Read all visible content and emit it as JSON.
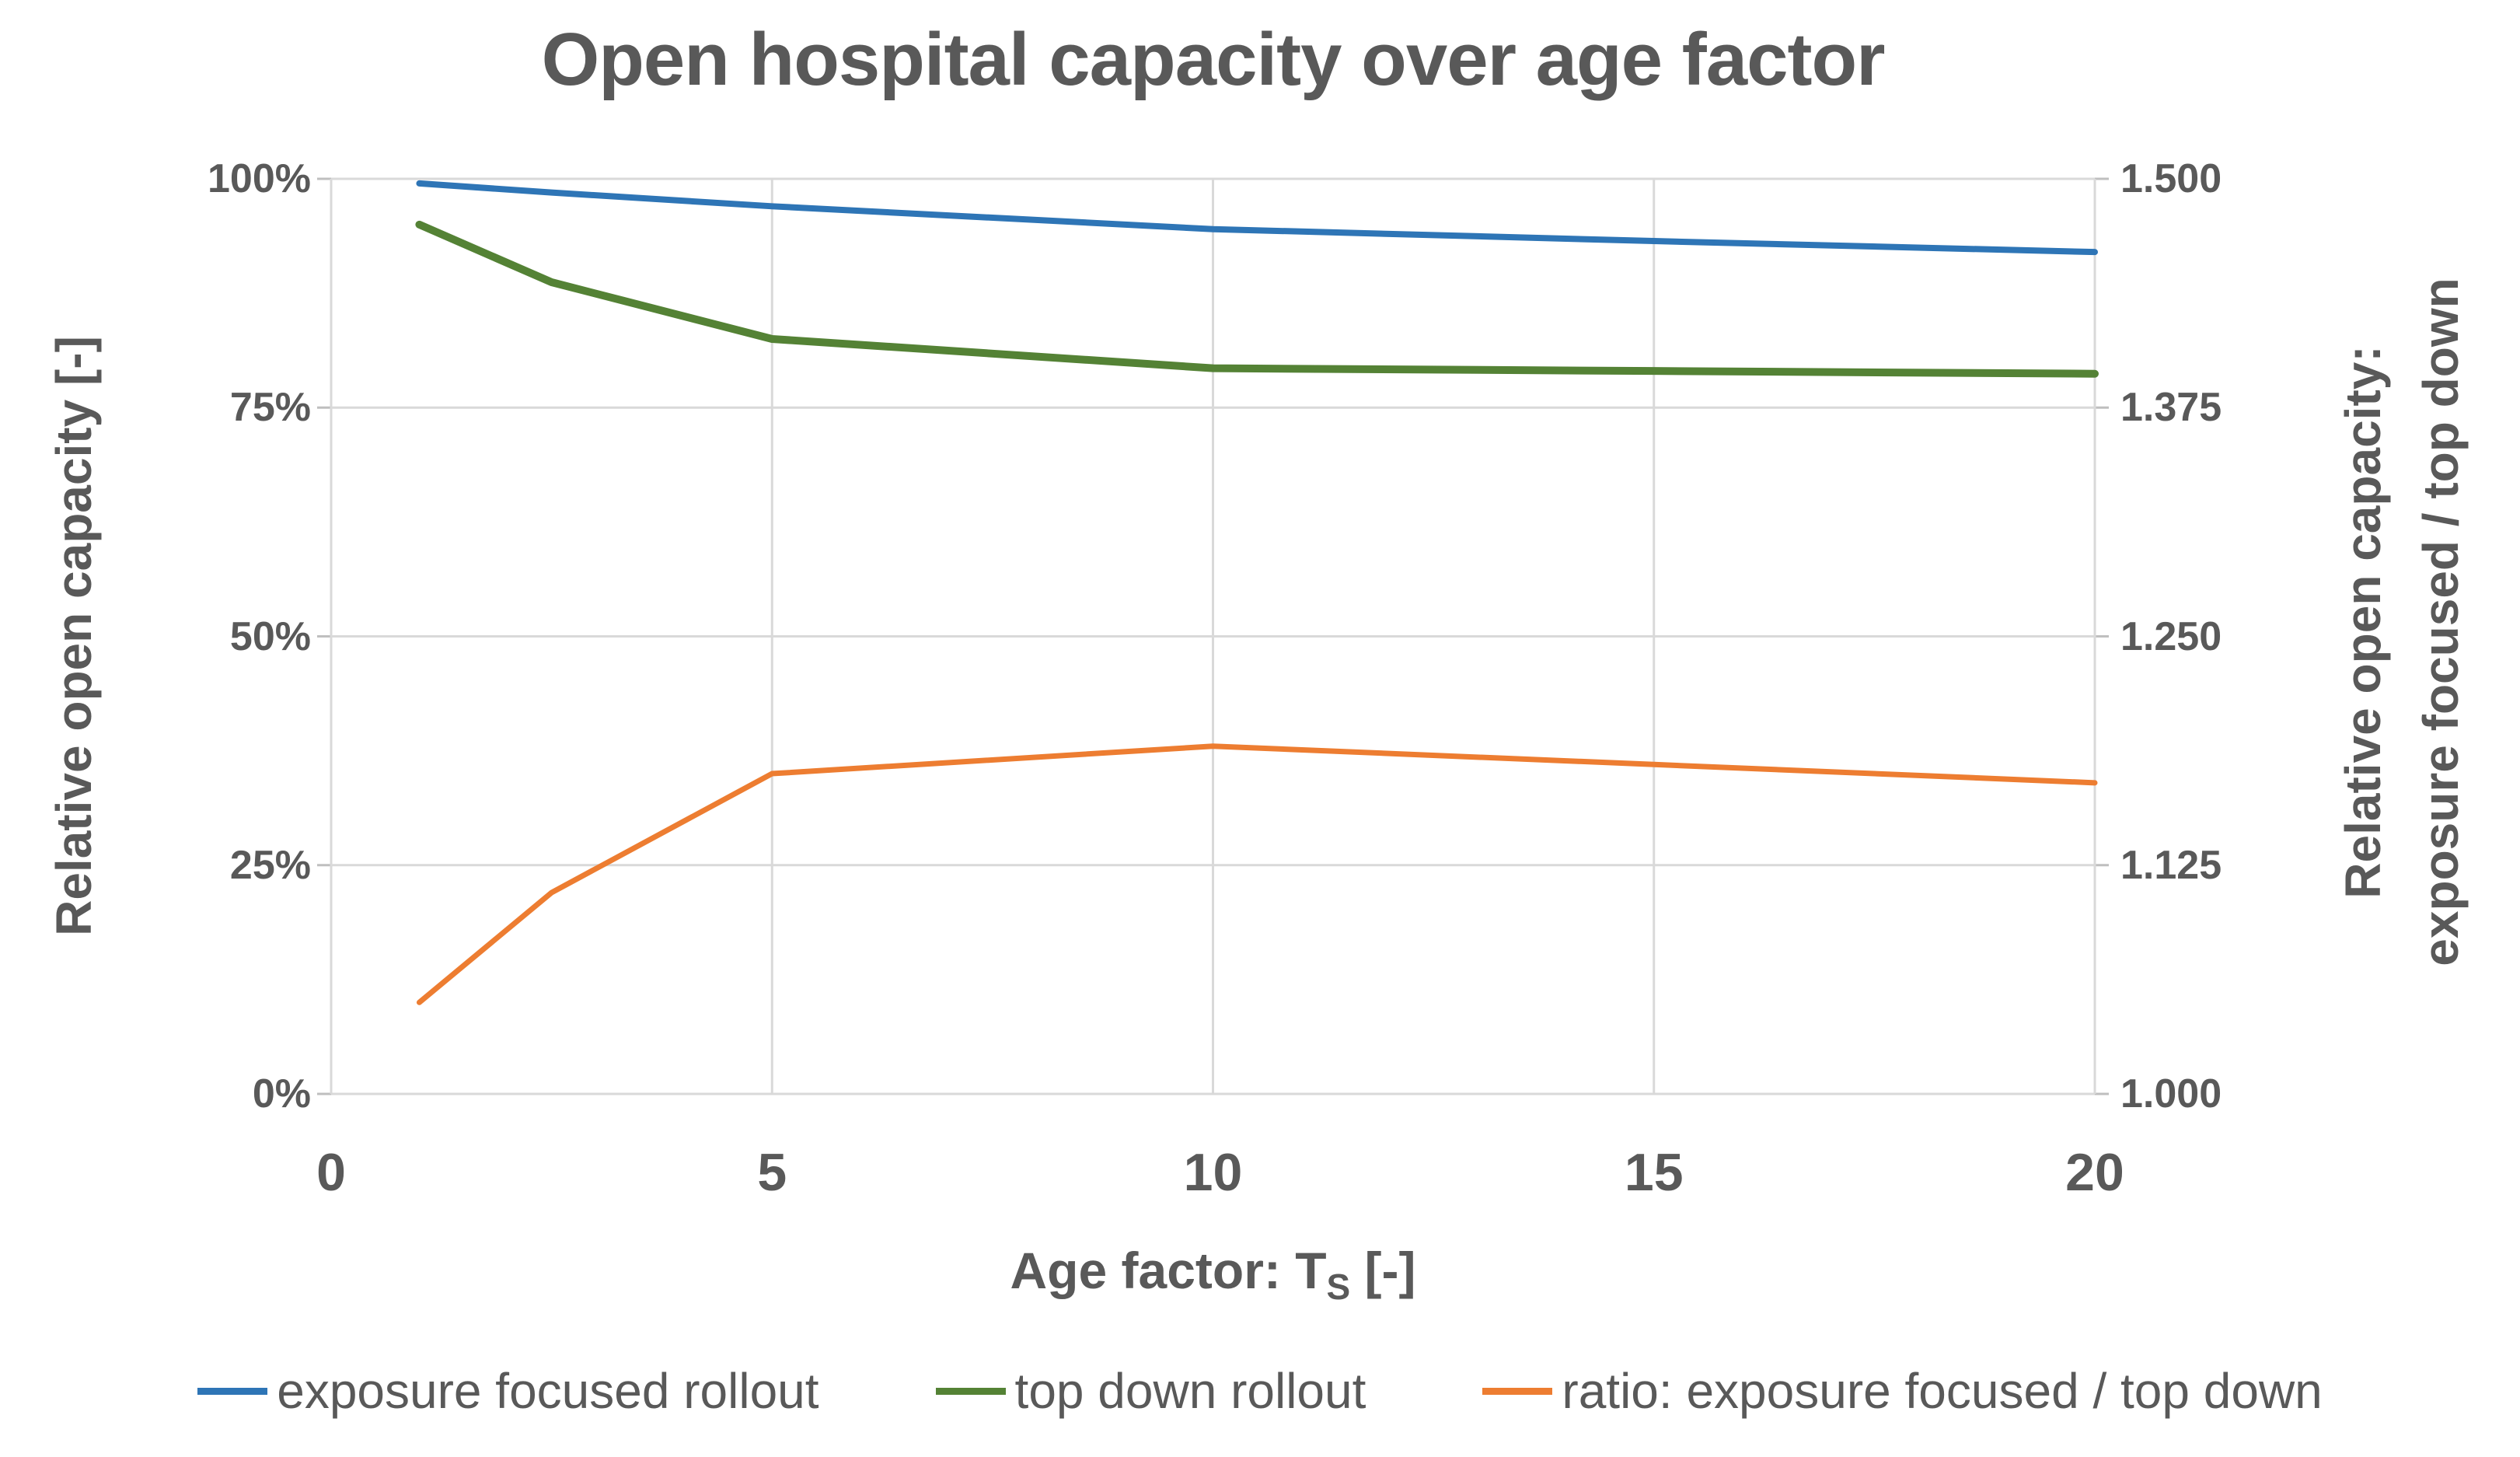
{
  "chart_data": {
    "type": "line",
    "title": "Open hospital capacity over age factor",
    "x": [
      1,
      2.5,
      5,
      10,
      15,
      20
    ],
    "series": [
      {
        "name": "exposure focused rollout",
        "axis": "left",
        "color": "#2E75B6",
        "width": 8,
        "values": [
          99.5,
          98.5,
          97.0,
          94.5,
          93.2,
          92.0
        ]
      },
      {
        "name": "top down rollout",
        "axis": "left",
        "color": "#548235",
        "width": 10,
        "values": [
          95.0,
          88.7,
          82.5,
          79.3,
          79.0,
          78.7
        ]
      },
      {
        "name": "ratio: exposure focused / top down",
        "axis": "right",
        "color": "#ED7D31",
        "width": 7,
        "values": [
          1.05,
          1.11,
          1.175,
          1.19,
          1.18,
          1.17
        ]
      }
    ],
    "x_axis": {
      "label_prefix": "Age factor: T",
      "label_sub": "S",
      "label_suffix": " [-]",
      "ticks": [
        0,
        5,
        10,
        15,
        20
      ],
      "range": [
        0,
        20
      ]
    },
    "left_axis": {
      "label": "Relative open capacity [-]",
      "ticks": [
        "0%",
        "25%",
        "50%",
        "75%",
        "100%"
      ],
      "range": [
        0,
        100
      ]
    },
    "right_axis": {
      "label_line1": "Relative open capacity:",
      "label_line2": "exposure focused / top down",
      "ticks": [
        "1.000",
        "1.125",
        "1.250",
        "1.375",
        "1.500"
      ],
      "range": [
        1.0,
        1.5
      ]
    },
    "grid": true,
    "legend_position": "bottom",
    "colors": {
      "text": "#595959",
      "gridline": "#D9D9D9",
      "tick": "#BFBFBF",
      "background": "#FFFFFF"
    }
  }
}
